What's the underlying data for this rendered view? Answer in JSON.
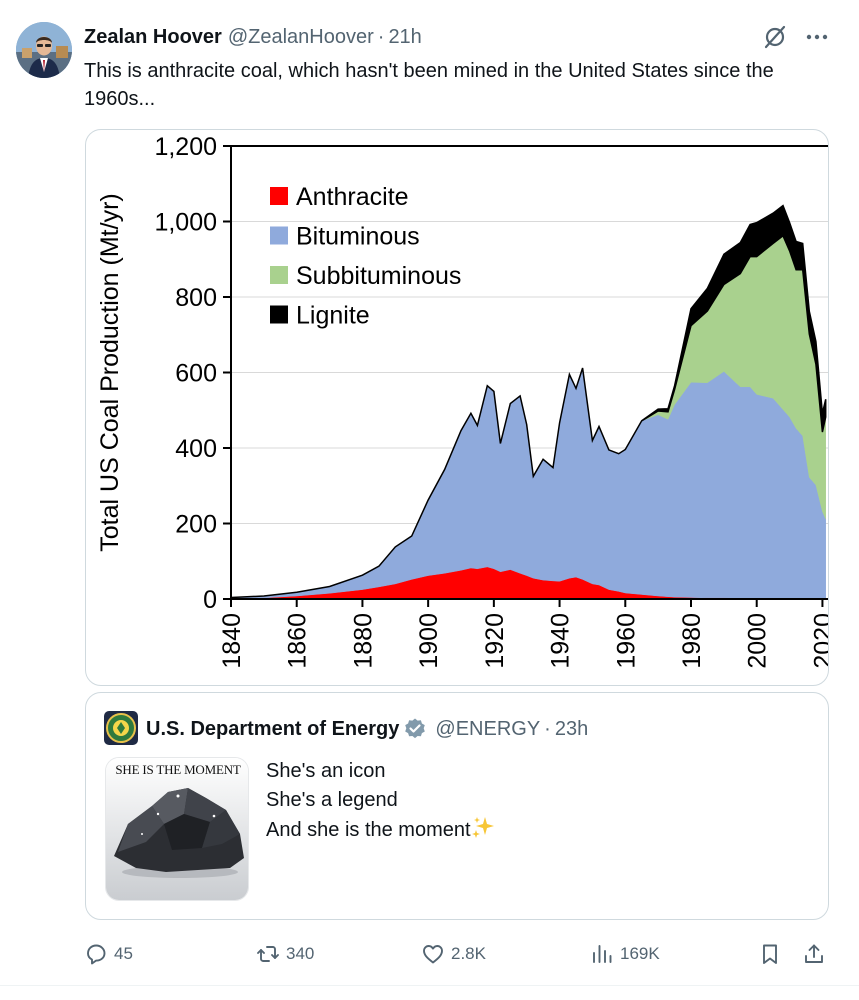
{
  "tweet": {
    "author_name": "Zealan Hoover",
    "author_handle": "@ZealanHoover",
    "separator": "·",
    "time": "21h",
    "text": "This is anthracite coal, which hasn't been mined in the United States since the 1960s..."
  },
  "chart_data": {
    "type": "area",
    "stacked": true,
    "title": "",
    "xlabel": "",
    "ylabel": "Total US Coal Production (Mt/yr)",
    "xlim": [
      1840,
      2022
    ],
    "ylim": [
      0,
      1200
    ],
    "x_ticks": [
      "1840",
      "1860",
      "1880",
      "1900",
      "1920",
      "1940",
      "1960",
      "1980",
      "2000",
      "2020"
    ],
    "y_ticks": [
      "0",
      "200",
      "400",
      "600",
      "800",
      "1,000",
      "1,200"
    ],
    "x_tick_values": [
      1840,
      1860,
      1880,
      1900,
      1920,
      1940,
      1960,
      1980,
      2000,
      2020
    ],
    "y_tick_values": [
      0,
      200,
      400,
      600,
      800,
      1000,
      1200
    ],
    "grid": true,
    "legend_position": "top-left",
    "x": [
      1840,
      1850,
      1860,
      1870,
      1880,
      1885,
      1890,
      1895,
      1900,
      1905,
      1910,
      1913,
      1915,
      1918,
      1920,
      1922,
      1925,
      1928,
      1930,
      1932,
      1935,
      1938,
      1940,
      1943,
      1945,
      1947,
      1950,
      1952,
      1955,
      1958,
      1960,
      1965,
      1970,
      1973,
      1975,
      1980,
      1985,
      1990,
      1995,
      1998,
      2000,
      2005,
      2008,
      2010,
      2012,
      2014,
      2016,
      2018,
      2020,
      2021
    ],
    "series": [
      {
        "name": "Anthracite",
        "color": "#ff0000",
        "values": [
          1,
          3,
          8,
          15,
          25,
          32,
          40,
          52,
          62,
          68,
          76,
          82,
          80,
          85,
          80,
          72,
          78,
          68,
          62,
          55,
          50,
          48,
          47,
          55,
          58,
          52,
          40,
          37,
          25,
          20,
          16,
          12,
          8,
          6,
          5,
          4,
          3,
          3,
          2,
          2,
          2,
          2,
          2,
          2,
          2,
          2,
          2,
          2,
          2,
          2
        ]
      },
      {
        "name": "Bituminous",
        "color": "#8faadc",
        "values": [
          3,
          5,
          10,
          18,
          38,
          55,
          98,
          115,
          200,
          275,
          370,
          410,
          380,
          480,
          470,
          340,
          440,
          470,
          400,
          270,
          320,
          300,
          420,
          540,
          500,
          560,
          380,
          420,
          370,
          365,
          380,
          460,
          480,
          470,
          510,
          570,
          570,
          600,
          560,
          560,
          540,
          530,
          500,
          480,
          450,
          430,
          320,
          300,
          230,
          210
        ]
      },
      {
        "name": "Subbituminous",
        "color": "#a9d18e",
        "values": [
          0,
          0,
          0,
          0,
          0,
          0,
          0,
          0,
          0,
          0,
          0,
          0,
          0,
          0,
          0,
          0,
          0,
          0,
          0,
          0,
          0,
          0,
          0,
          0,
          0,
          0,
          0,
          0,
          0,
          0,
          0,
          0,
          10,
          20,
          40,
          150,
          190,
          230,
          300,
          345,
          365,
          410,
          460,
          440,
          420,
          440,
          380,
          320,
          210,
          270
        ]
      },
      {
        "name": "Lignite",
        "color": "#000000",
        "values": [
          0,
          0,
          0,
          0,
          0,
          0,
          0,
          0,
          0,
          0,
          0,
          0,
          0,
          0,
          0,
          0,
          0,
          0,
          0,
          0,
          0,
          0,
          0,
          0,
          0,
          0,
          0,
          0,
          0,
          0,
          0,
          0,
          5,
          8,
          10,
          45,
          60,
          80,
          82,
          85,
          90,
          80,
          80,
          75,
          75,
          70,
          60,
          60,
          50,
          47
        ]
      }
    ]
  },
  "quote": {
    "org_name": "U.S. Department of Energy",
    "handle": "@ENERGY",
    "separator": "·",
    "time": "23h",
    "image_caption": "SHE IS THE MOMENT",
    "lines": [
      "She's an icon",
      "She's a legend",
      "And she is the moment"
    ]
  },
  "actions": {
    "replies": "45",
    "reposts": "340",
    "likes": "2.8K",
    "views": "169K"
  }
}
